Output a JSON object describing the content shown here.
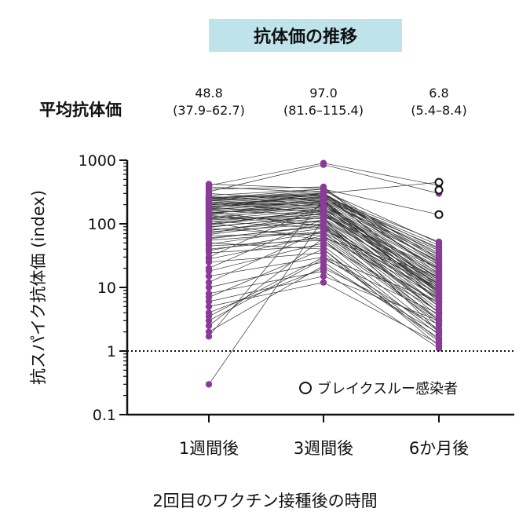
{
  "header": {
    "title": "抗体価の推移",
    "mean_label": "平均抗体価",
    "means": [
      {
        "value": "48.8",
        "ci": "(37.9–62.7)"
      },
      {
        "value": "97.0",
        "ci": "(81.6–115.4)"
      },
      {
        "value": "6.8",
        "ci": "(5.4–8.4)"
      }
    ]
  },
  "chart_data": {
    "type": "line",
    "scale": "log",
    "ylabel": "抗スパイク抗体価 (index)",
    "xlabel": "2回目のワクチン接種後の時間",
    "categories": [
      "1週間後",
      "3週間後",
      "6か月後"
    ],
    "ylim": [
      0.1,
      1000
    ],
    "yticks": [
      0.1,
      1,
      10,
      100,
      1000
    ],
    "ytick_labels": [
      "0.1",
      "1",
      "10",
      "100",
      "1000"
    ],
    "reference_line": {
      "value": 1,
      "style": "dotted"
    },
    "legend": {
      "label": "ブレイクスルー感染者",
      "position": "bottom-right",
      "marker": "open-circle"
    },
    "colors": {
      "points": "#8a3a98",
      "lines": "#333333",
      "breakthrough": "#111111"
    },
    "subjects": [
      [
        400,
        900,
        400
      ],
      [
        320,
        850,
        300
      ],
      [
        250,
        350,
        140
      ],
      [
        180,
        300,
        450
      ],
      [
        0.3,
        120,
        2
      ],
      [
        1.7,
        240,
        8
      ],
      [
        2.5,
        60,
        15
      ],
      [
        3.5,
        30,
        6
      ],
      [
        6,
        15,
        3
      ],
      [
        7,
        40,
        1.5
      ],
      [
        12,
        80,
        10
      ],
      [
        20,
        120,
        4
      ],
      [
        30,
        200,
        12
      ],
      [
        40,
        60,
        3
      ],
      [
        55,
        75,
        2.5
      ],
      [
        60,
        90,
        7
      ],
      [
        70,
        150,
        9
      ],
      [
        80,
        110,
        5
      ],
      [
        90,
        130,
        20
      ],
      [
        100,
        160,
        6
      ],
      [
        110,
        85,
        3
      ],
      [
        120,
        200,
        14
      ],
      [
        130,
        95,
        4
      ],
      [
        140,
        250,
        25
      ],
      [
        150,
        180,
        8
      ],
      [
        160,
        140,
        11
      ],
      [
        170,
        300,
        18
      ],
      [
        190,
        220,
        7
      ],
      [
        200,
        260,
        35
      ],
      [
        220,
        190,
        9
      ],
      [
        240,
        330,
        50
      ],
      [
        260,
        280,
        13
      ],
      [
        280,
        350,
        22
      ],
      [
        300,
        230,
        6
      ],
      [
        350,
        380,
        16
      ],
      [
        380,
        310,
        10
      ],
      [
        420,
        360,
        28
      ],
      [
        50,
        40,
        1.2
      ],
      [
        45,
        55,
        2
      ],
      [
        35,
        45,
        1.8
      ],
      [
        25,
        35,
        1.4
      ],
      [
        15,
        30,
        2.2
      ],
      [
        10,
        25,
        1.6
      ],
      [
        8,
        18,
        1.1
      ],
      [
        65,
        70,
        5.5
      ],
      [
        75,
        100,
        4.5
      ],
      [
        85,
        65,
        3.2
      ],
      [
        95,
        170,
        12
      ],
      [
        105,
        55,
        2.8
      ],
      [
        115,
        140,
        7.5
      ],
      [
        125,
        120,
        6.5
      ],
      [
        135,
        105,
        4
      ],
      [
        145,
        210,
        15
      ],
      [
        155,
        90,
        3.5
      ],
      [
        165,
        230,
        9.5
      ],
      [
        175,
        160,
        8.5
      ],
      [
        185,
        270,
        19
      ],
      [
        210,
        150,
        5
      ],
      [
        230,
        300,
        24
      ],
      [
        270,
        200,
        11
      ],
      [
        5,
        12,
        1.3
      ],
      [
        4,
        20,
        2.6
      ],
      [
        3,
        28,
        3.8
      ],
      [
        2,
        22,
        1.9
      ],
      [
        18,
        50,
        4.2
      ],
      [
        28,
        65,
        5.8
      ],
      [
        38,
        75,
        6.8
      ],
      [
        48,
        85,
        7.8
      ],
      [
        58,
        95,
        8.8
      ],
      [
        68,
        115,
        10.5
      ],
      [
        78,
        125,
        9
      ],
      [
        88,
        135,
        11.5
      ],
      [
        98,
        145,
        13
      ],
      [
        108,
        155,
        14
      ],
      [
        118,
        165,
        16
      ],
      [
        128,
        175,
        17
      ],
      [
        138,
        185,
        20
      ],
      [
        148,
        195,
        21
      ],
      [
        158,
        205,
        23
      ],
      [
        168,
        215,
        26
      ],
      [
        178,
        225,
        30
      ],
      [
        188,
        235,
        32
      ],
      [
        198,
        245,
        38
      ],
      [
        208,
        255,
        42
      ],
      [
        218,
        265,
        46
      ],
      [
        228,
        275,
        52
      ],
      [
        238,
        285,
        40
      ],
      [
        248,
        295,
        33
      ],
      [
        258,
        305,
        27
      ]
    ],
    "breakthrough_points": [
      {
        "category": "6か月後",
        "value": 450
      },
      {
        "category": "6か月後",
        "value": 340
      },
      {
        "category": "6か月後",
        "value": 140
      }
    ]
  }
}
